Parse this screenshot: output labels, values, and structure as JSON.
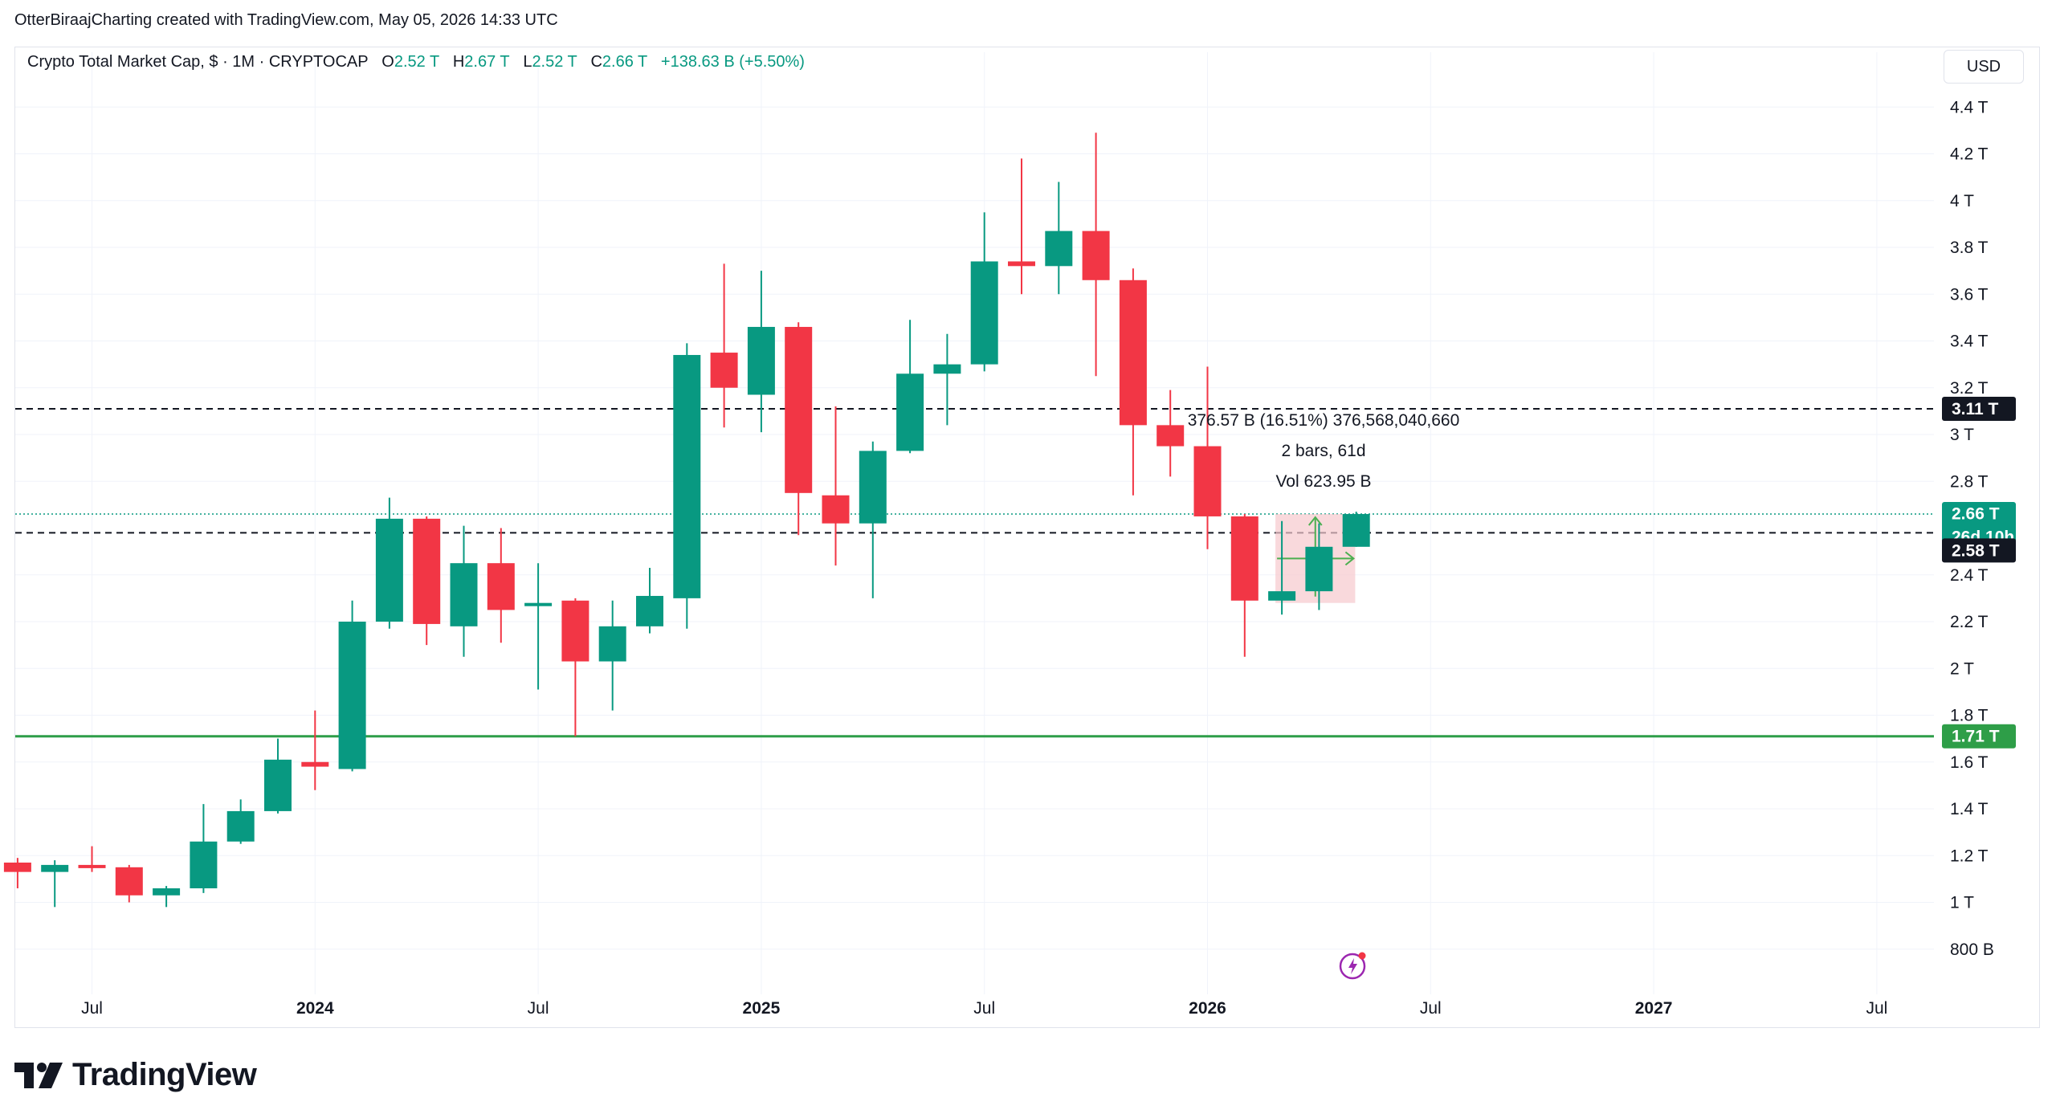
{
  "attribution": "OtterBiraajCharting created with TradingView.com, May 05, 2026 14:33 UTC",
  "legend": {
    "symbol": "Crypto Total Market Cap, $ · 1M · CRYPTOCAP",
    "o_label": "O",
    "o_value": "2.52 T",
    "h_label": "H",
    "h_value": "2.67 T",
    "l_label": "L",
    "l_value": "2.52 T",
    "c_label": "C",
    "c_value": "2.66 T",
    "change": "+138.63 B (+5.50%)"
  },
  "currency": "USD",
  "logo_text": "TradingView",
  "colors": {
    "up": "#089981",
    "down": "#f23645",
    "support_line": "#2e9e48",
    "dashed_line": "#131722",
    "grid": "#f0f3fa",
    "current_price_tag": "#089981",
    "dark_tag": "#131722",
    "measure_box": "#f7c9cd",
    "measure_arrow": "#4caf50"
  },
  "icons": [
    "tradingview-logo-icon",
    "flash-icon"
  ],
  "measure": {
    "line1": "376.57 B (16.51%) 376,568,040,660",
    "line2": "2 bars, 61d",
    "line3": "Vol 623.95 B"
  },
  "price_tags": {
    "upper_level": "3.11 T",
    "current_price": "2.66 T",
    "countdown": "26d 10h",
    "lower_level": "2.58 T",
    "support": "1.71 T"
  },
  "chart_data": {
    "type": "candlestick",
    "title": "Crypto Total Market Cap, $ · 1M · CRYPTOCAP",
    "interval": "1M",
    "y_unit": "T",
    "y_ticks": [
      {
        "value": 0.8,
        "label": "800 B"
      },
      {
        "value": 1.0,
        "label": "1 T"
      },
      {
        "value": 1.2,
        "label": "1.2 T"
      },
      {
        "value": 1.4,
        "label": "1.4 T"
      },
      {
        "value": 1.6,
        "label": "1.6 T"
      },
      {
        "value": 1.8,
        "label": "1.8 T"
      },
      {
        "value": 2.0,
        "label": "2 T"
      },
      {
        "value": 2.2,
        "label": "2.2 T"
      },
      {
        "value": 2.4,
        "label": "2.4 T"
      },
      {
        "value": 2.8,
        "label": "2.8 T"
      },
      {
        "value": 3.0,
        "label": "3 T"
      },
      {
        "value": 3.2,
        "label": "3.2 T"
      },
      {
        "value": 3.4,
        "label": "3.4 T"
      },
      {
        "value": 3.6,
        "label": "3.6 T"
      },
      {
        "value": 3.8,
        "label": "3.8 T"
      },
      {
        "value": 4.0,
        "label": "4 T"
      },
      {
        "value": 4.2,
        "label": "4.2 T"
      },
      {
        "value": 4.4,
        "label": "4.4 T"
      }
    ],
    "x_ticks": [
      {
        "month": "2023-07",
        "label": "Jul",
        "bold": false
      },
      {
        "month": "2024-01",
        "label": "2024",
        "bold": true
      },
      {
        "month": "2024-07",
        "label": "Jul",
        "bold": false
      },
      {
        "month": "2025-01",
        "label": "2025",
        "bold": true
      },
      {
        "month": "2025-07",
        "label": "Jul",
        "bold": false
      },
      {
        "month": "2026-01",
        "label": "2026",
        "bold": true
      },
      {
        "month": "2026-07",
        "label": "Jul",
        "bold": false
      },
      {
        "month": "2027-01",
        "label": "2027",
        "bold": true
      },
      {
        "month": "2027-07",
        "label": "Jul",
        "bold": false
      }
    ],
    "candles": [
      {
        "month": "2023-05",
        "open": 1.17,
        "high": 1.19,
        "low": 1.06,
        "close": 1.13
      },
      {
        "month": "2023-06",
        "open": 1.13,
        "high": 1.18,
        "low": 0.98,
        "close": 1.16
      },
      {
        "month": "2023-07",
        "open": 1.16,
        "high": 1.24,
        "low": 1.13,
        "close": 1.15
      },
      {
        "month": "2023-08",
        "open": 1.15,
        "high": 1.16,
        "low": 1.0,
        "close": 1.03
      },
      {
        "month": "2023-09",
        "open": 1.03,
        "high": 1.07,
        "low": 0.98,
        "close": 1.06
      },
      {
        "month": "2023-10",
        "open": 1.06,
        "high": 1.42,
        "low": 1.04,
        "close": 1.26
      },
      {
        "month": "2023-11",
        "open": 1.26,
        "high": 1.44,
        "low": 1.25,
        "close": 1.39
      },
      {
        "month": "2023-12",
        "open": 1.39,
        "high": 1.7,
        "low": 1.38,
        "close": 1.61
      },
      {
        "month": "2024-01",
        "open": 1.6,
        "high": 1.82,
        "low": 1.48,
        "close": 1.58
      },
      {
        "month": "2024-02",
        "open": 1.57,
        "high": 2.29,
        "low": 1.56,
        "close": 2.2
      },
      {
        "month": "2024-03",
        "open": 2.2,
        "high": 2.73,
        "low": 2.17,
        "close": 2.64
      },
      {
        "month": "2024-04",
        "open": 2.64,
        "high": 2.65,
        "low": 2.1,
        "close": 2.19
      },
      {
        "month": "2024-05",
        "open": 2.18,
        "high": 2.61,
        "low": 2.05,
        "close": 2.45
      },
      {
        "month": "2024-06",
        "open": 2.45,
        "high": 2.6,
        "low": 2.11,
        "close": 2.25
      },
      {
        "month": "2024-07",
        "open": 2.27,
        "high": 2.45,
        "low": 1.91,
        "close": 2.28
      },
      {
        "month": "2024-08",
        "open": 2.29,
        "high": 2.3,
        "low": 1.71,
        "close": 2.03
      },
      {
        "month": "2024-09",
        "open": 2.03,
        "high": 2.29,
        "low": 1.82,
        "close": 2.18
      },
      {
        "month": "2024-10",
        "open": 2.18,
        "high": 2.43,
        "low": 2.15,
        "close": 2.31
      },
      {
        "month": "2024-11",
        "open": 2.3,
        "high": 3.39,
        "low": 2.17,
        "close": 3.34
      },
      {
        "month": "2024-12",
        "open": 3.35,
        "high": 3.73,
        "low": 3.03,
        "close": 3.2
      },
      {
        "month": "2025-01",
        "open": 3.17,
        "high": 3.7,
        "low": 3.01,
        "close": 3.46
      },
      {
        "month": "2025-02",
        "open": 3.46,
        "high": 3.48,
        "low": 2.57,
        "close": 2.75
      },
      {
        "month": "2025-03",
        "open": 2.74,
        "high": 3.12,
        "low": 2.44,
        "close": 2.62
      },
      {
        "month": "2025-04",
        "open": 2.62,
        "high": 2.97,
        "low": 2.3,
        "close": 2.93
      },
      {
        "month": "2025-05",
        "open": 2.93,
        "high": 3.49,
        "low": 2.92,
        "close": 3.26
      },
      {
        "month": "2025-06",
        "open": 3.26,
        "high": 3.43,
        "low": 3.04,
        "close": 3.3
      },
      {
        "month": "2025-07",
        "open": 3.3,
        "high": 3.95,
        "low": 3.27,
        "close": 3.74
      },
      {
        "month": "2025-08",
        "open": 3.74,
        "high": 4.18,
        "low": 3.6,
        "close": 3.72
      },
      {
        "month": "2025-09",
        "open": 3.72,
        "high": 4.08,
        "low": 3.6,
        "close": 3.87
      },
      {
        "month": "2025-10",
        "open": 3.87,
        "high": 4.29,
        "low": 3.25,
        "close": 3.66
      },
      {
        "month": "2025-11",
        "open": 3.66,
        "high": 3.71,
        "low": 2.74,
        "close": 3.04
      },
      {
        "month": "2025-12",
        "open": 3.04,
        "high": 3.19,
        "low": 2.82,
        "close": 2.95
      },
      {
        "month": "2026-01",
        "open": 2.95,
        "high": 3.29,
        "low": 2.51,
        "close": 2.65
      },
      {
        "month": "2026-02",
        "open": 2.65,
        "high": 2.66,
        "low": 2.05,
        "close": 2.29
      },
      {
        "month": "2026-03",
        "open": 2.29,
        "high": 2.63,
        "low": 2.23,
        "close": 2.33
      },
      {
        "month": "2026-04",
        "open": 2.33,
        "high": 2.62,
        "low": 2.25,
        "close": 2.52
      },
      {
        "month": "2026-05",
        "open": 2.52,
        "high": 2.67,
        "low": 2.52,
        "close": 2.66
      }
    ],
    "horizontal_lines": [
      {
        "price": 3.11,
        "style": "dashed",
        "label": "3.11 T"
      },
      {
        "price": 2.58,
        "style": "dashed",
        "label": "2.58 T"
      },
      {
        "price": 1.71,
        "style": "solid",
        "label": "1.71 T"
      },
      {
        "price": 2.66,
        "style": "dotted",
        "label": "2.66 T"
      }
    ],
    "measure_range": {
      "from_month": "2026-03",
      "to_month": "2026-04",
      "low": 2.28,
      "high": 2.66
    },
    "grid": true,
    "legend_position": "top-left",
    "y_axis_position": "right"
  }
}
